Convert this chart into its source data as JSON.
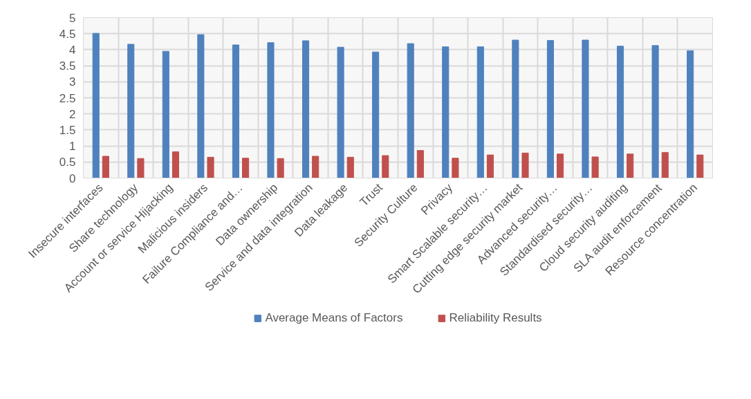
{
  "chart_data": {
    "type": "bar",
    "categories": [
      "Insecure interfaces",
      "Share technology",
      "Account or service Hijacking",
      "Malicious insiders",
      "Failure Compliance and…",
      "Data ownership",
      "Service and data integration",
      "Data leakage",
      "Trust",
      "Security Culture",
      "Privacy",
      "Smart Scalable security…",
      "Cutting edge security market",
      "Advanced security…",
      "Standardised security…",
      "Cloud security auditing",
      "SLA audit enforcement",
      "Resource concentration"
    ],
    "series": [
      {
        "name": "Average Means of Factors",
        "color": "#4f81bd",
        "values": [
          4.51,
          4.17,
          3.95,
          4.47,
          4.15,
          4.22,
          4.28,
          4.08,
          3.93,
          4.19,
          4.09,
          4.09,
          4.3,
          4.29,
          4.3,
          4.11,
          4.13,
          3.97
        ]
      },
      {
        "name": "Reliability Results",
        "color": "#c0504d",
        "values": [
          0.68,
          0.61,
          0.82,
          0.65,
          0.62,
          0.61,
          0.68,
          0.65,
          0.7,
          0.86,
          0.62,
          0.72,
          0.78,
          0.75,
          0.66,
          0.75,
          0.8,
          0.72
        ]
      }
    ],
    "ylim": [
      0,
      5
    ],
    "yticks": [
      0,
      0.5,
      1,
      1.5,
      2,
      2.5,
      3,
      3.5,
      4,
      4.5,
      5
    ],
    "grid": true,
    "legend": "bottom"
  }
}
